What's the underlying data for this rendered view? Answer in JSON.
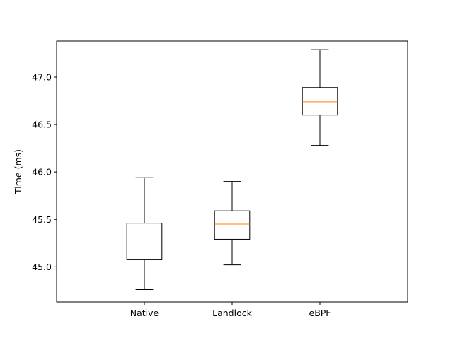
{
  "chart_data": {
    "type": "box",
    "title": "",
    "xlabel": "",
    "ylabel": "Time (ms)",
    "ylim": [
      44.63,
      47.38
    ],
    "yticks": [
      45.0,
      45.5,
      46.0,
      46.5,
      47.0
    ],
    "ytick_labels": [
      "45.0",
      "45.5",
      "46.0",
      "46.5",
      "47.0"
    ],
    "grid": false,
    "categories": [
      "Native",
      "Landlock",
      "eBPF"
    ],
    "boxes": [
      {
        "name": "Native",
        "whisker_low": 44.76,
        "q1": 45.08,
        "median": 45.23,
        "q3": 45.46,
        "whisker_high": 45.94
      },
      {
        "name": "Landlock",
        "whisker_low": 45.02,
        "q1": 45.29,
        "median": 45.45,
        "q3": 45.59,
        "whisker_high": 45.9
      },
      {
        "name": "eBPF",
        "whisker_low": 46.28,
        "q1": 46.6,
        "median": 46.74,
        "q3": 46.89,
        "whisker_high": 47.29
      }
    ],
    "colors": {
      "box": "#000000",
      "median": "#ff7f0e",
      "axes": "#000000"
    }
  }
}
